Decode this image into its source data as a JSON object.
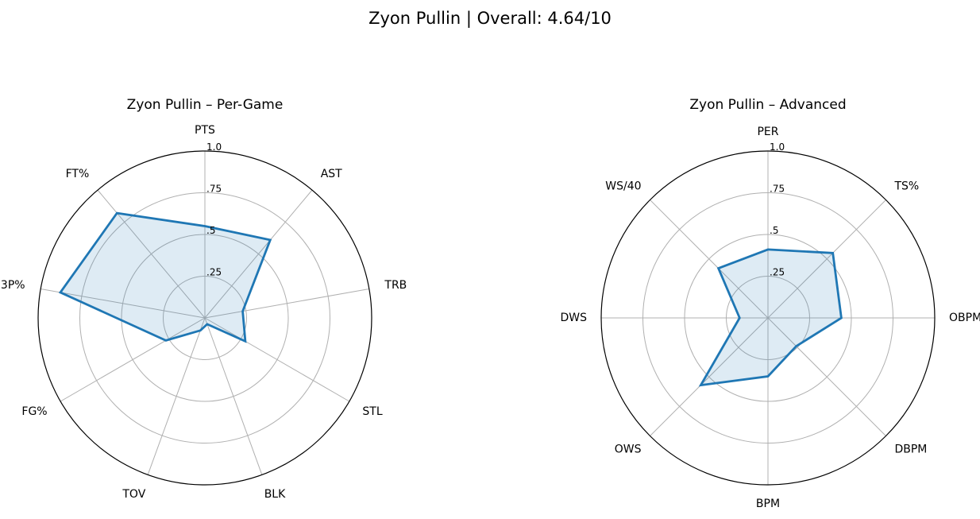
{
  "figure": {
    "title": "Zyon Pullin | Overall: 4.64/10"
  },
  "style": {
    "line_color": "#1f77b4",
    "fill_color": "#1f77b4",
    "grid_color": "#b0b0b0"
  },
  "chart_data": [
    {
      "type": "radar",
      "title": "Zyon Pullin – Per-Game",
      "categories": [
        "PTS",
        "AST",
        "TRB",
        "STL",
        "BLK",
        "TOV",
        "FG%",
        "3P%",
        "FT%"
      ],
      "values": [
        0.55,
        0.61,
        0.23,
        0.28,
        0.04,
        0.08,
        0.27,
        0.88,
        0.82
      ],
      "rlim": [
        0,
        1
      ],
      "rticks": [
        0.25,
        0.5,
        0.75,
        1.0
      ],
      "rtick_labels": [
        ".25",
        ".5",
        ".75",
        "1.0"
      ],
      "grid": true
    },
    {
      "type": "radar",
      "title": "Zyon Pullin – Advanced",
      "categories": [
        "PER",
        "TS%",
        "OBPM",
        "DBPM",
        "BPM",
        "OWS",
        "DWS",
        "WS/40"
      ],
      "values": [
        0.41,
        0.55,
        0.44,
        0.24,
        0.35,
        0.57,
        0.17,
        0.42
      ],
      "rlim": [
        0,
        1
      ],
      "rticks": [
        0.25,
        0.5,
        0.75,
        1.0
      ],
      "rtick_labels": [
        ".25",
        ".5",
        ".75",
        "1.0"
      ],
      "grid": true
    }
  ]
}
